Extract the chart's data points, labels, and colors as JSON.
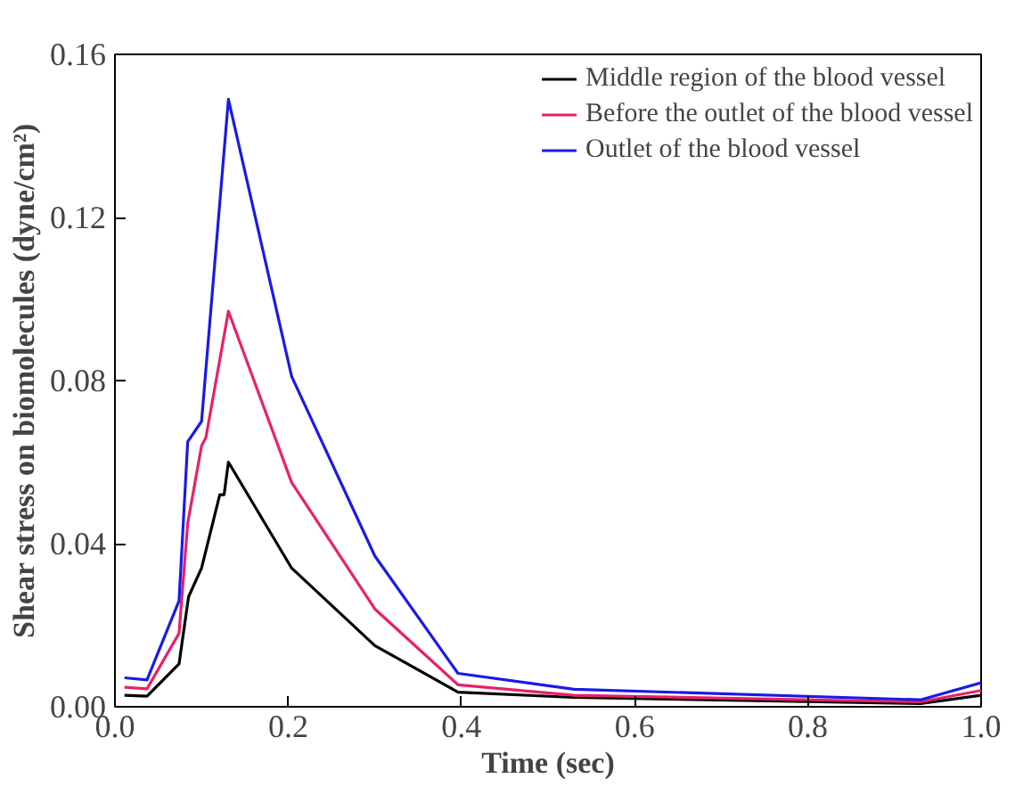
{
  "chart_data": {
    "type": "line",
    "xlabel": "Time (sec)",
    "ylabel": "Shear stress on biomolecules (dyne/cm²)",
    "xlim": [
      0,
      1
    ],
    "ylim": [
      0,
      0.16
    ],
    "xticks": [
      {
        "value": 0,
        "label": "0.0"
      },
      {
        "value": 0.2,
        "label": "0.2"
      },
      {
        "value": 0.4,
        "label": "0.4"
      },
      {
        "value": 0.6,
        "label": "0.6"
      },
      {
        "value": 0.8,
        "label": "0.8"
      },
      {
        "value": 1,
        "label": "1.0"
      }
    ],
    "yticks": [
      {
        "value": 0,
        "label": "0.00"
      },
      {
        "value": 0.04,
        "label": "0.04"
      },
      {
        "value": 0.08,
        "label": "0.08"
      },
      {
        "value": 0.12,
        "label": "0.12"
      },
      {
        "value": 0.16,
        "label": "0.16"
      }
    ],
    "legend": "top right",
    "grid": false,
    "marker": "none",
    "line_style": "solid",
    "series": [
      {
        "name": "Middle region of the blood vessel",
        "color": "#000000",
        "x": [
          0.011,
          0.037,
          0.074,
          0.085,
          0.1,
          0.121,
          0.126,
          0.131,
          0.204,
          0.3,
          0.396,
          0.53,
          0.93,
          1.0
        ],
        "values": [
          0.0028,
          0.0026,
          0.0105,
          0.027,
          0.034,
          0.052,
          0.052,
          0.06,
          0.034,
          0.015,
          0.0036,
          0.0023,
          0.0008,
          0.0028
        ]
      },
      {
        "name": "Before the outlet of the blood vessel",
        "color": "#e8206a",
        "x": [
          0.011,
          0.037,
          0.074,
          0.084,
          0.1,
          0.105,
          0.131,
          0.204,
          0.3,
          0.396,
          0.53,
          0.93,
          1.0
        ],
        "values": [
          0.0048,
          0.0044,
          0.018,
          0.045,
          0.064,
          0.066,
          0.097,
          0.055,
          0.024,
          0.0054,
          0.0028,
          0.0012,
          0.004
        ]
      },
      {
        "name": "Outlet of the blood vessel",
        "color": "#1a1ae6",
        "x": [
          0.011,
          0.037,
          0.074,
          0.084,
          0.1,
          0.131,
          0.204,
          0.3,
          0.396,
          0.53,
          0.93,
          1.0
        ],
        "values": [
          0.0071,
          0.0066,
          0.026,
          0.065,
          0.07,
          0.149,
          0.081,
          0.037,
          0.0082,
          0.0043,
          0.0017,
          0.0059
        ]
      }
    ]
  }
}
